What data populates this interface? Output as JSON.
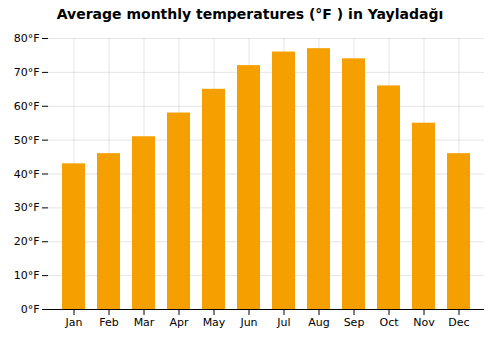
{
  "chart_data": {
    "type": "bar",
    "title": "Average monthly temperatures (°F ) in Yayladağı",
    "categories": [
      "Jan",
      "Feb",
      "Mar",
      "Apr",
      "May",
      "Jun",
      "Jul",
      "Aug",
      "Sep",
      "Oct",
      "Nov",
      "Dec"
    ],
    "values": [
      43,
      46,
      51,
      58,
      65,
      72,
      76,
      77,
      74,
      66,
      55,
      46
    ],
    "color": "#F5A000",
    "ylim": [
      0,
      80
    ],
    "yticks": [
      {
        "value": 0,
        "label": "0°F"
      },
      {
        "value": 10,
        "label": "10°F"
      },
      {
        "value": 20,
        "label": "20°F"
      },
      {
        "value": 30,
        "label": "30°F"
      },
      {
        "value": 40,
        "label": "40°F"
      },
      {
        "value": 50,
        "label": "50°F"
      },
      {
        "value": 60,
        "label": "60°F"
      },
      {
        "value": 70,
        "label": "70°F"
      },
      {
        "value": 80,
        "label": "80°F"
      }
    ],
    "grid": true
  }
}
